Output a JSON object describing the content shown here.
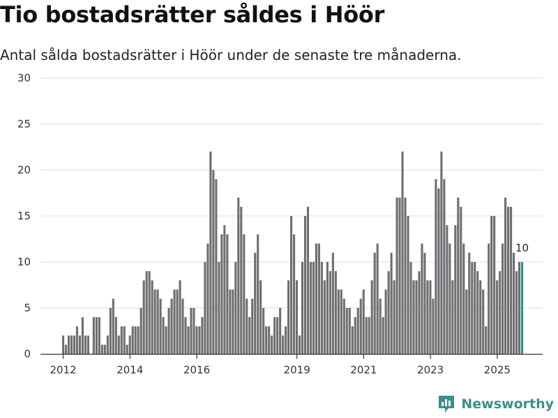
{
  "title": "Tio bostadsrätter såldes i Höör",
  "subtitle": "Antal sålda bostadsrätter i Höör under de senaste tre månaderna.",
  "brand": {
    "name": "Newsworthy",
    "icon": "newsworthy-logo-icon",
    "color": "#3c8f8a"
  },
  "colors": {
    "bar": "#6e6e72",
    "highlight": "#1a9a8e",
    "grid": "#dedede",
    "axis": "#333333"
  },
  "chart_data": {
    "type": "bar",
    "title": "Tio bostadsrätter såldes i Höör",
    "subtitle": "Antal sålda bostadsrätter i Höör under de senaste tre månaderna.",
    "xlabel": "",
    "ylabel": "",
    "ylim": [
      0,
      30
    ],
    "yticks": [
      0,
      5,
      10,
      15,
      20,
      25,
      30
    ],
    "xlim": [
      2011.32,
      2026.36
    ],
    "xticks": [
      2012,
      2014,
      2016,
      2019,
      2021,
      2023,
      2025
    ],
    "grid": true,
    "x_start": 2012.0,
    "x_step": 0.0833,
    "values": [
      2,
      1,
      2,
      2,
      2,
      3,
      2,
      4,
      2,
      2,
      0,
      4,
      4,
      4,
      1,
      1,
      2,
      5,
      6,
      4,
      2,
      3,
      3,
      1,
      2,
      3,
      3,
      3,
      5,
      8,
      9,
      9,
      8,
      7,
      7,
      6,
      4,
      3,
      5,
      6,
      7,
      7,
      8,
      6,
      4,
      3,
      5,
      5,
      3,
      3,
      4,
      10,
      12,
      22,
      20,
      19,
      10,
      13,
      14,
      13,
      7,
      7,
      10,
      17,
      16,
      13,
      6,
      4,
      6,
      11,
      13,
      8,
      5,
      3,
      3,
      2,
      4,
      4,
      5,
      2,
      3,
      8,
      15,
      13,
      8,
      2,
      10,
      15,
      16,
      10,
      10,
      12,
      12,
      10,
      8,
      10,
      9,
      11,
      9,
      7,
      7,
      6,
      5,
      5,
      3,
      4,
      5,
      6,
      7,
      4,
      4,
      8,
      11,
      12,
      6,
      4,
      7,
      9,
      11,
      8,
      17,
      17,
      22,
      17,
      15,
      10,
      8,
      8,
      9,
      12,
      11,
      8,
      8,
      6,
      19,
      18,
      22,
      19,
      14,
      12,
      8,
      14,
      17,
      16,
      12,
      7,
      11,
      10,
      10,
      9,
      8,
      7,
      3,
      12,
      15,
      15,
      8,
      9,
      12,
      17,
      16,
      16,
      11,
      9,
      10
    ],
    "highlight": {
      "index": 165,
      "value": 10,
      "label": "10"
    }
  }
}
